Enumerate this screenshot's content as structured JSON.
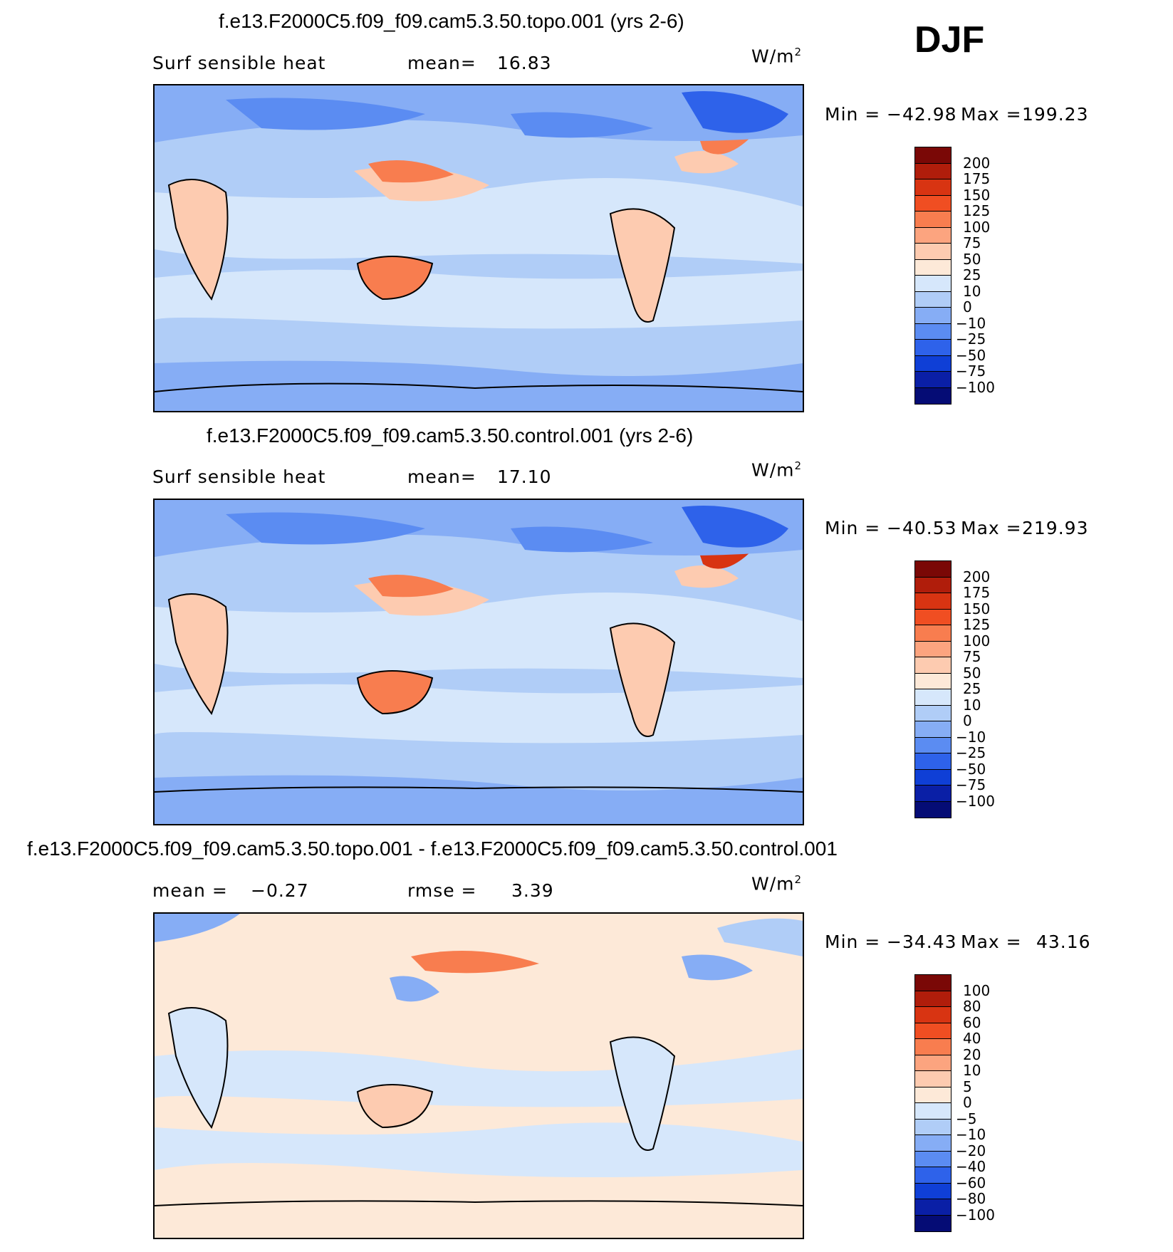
{
  "season": "DJF",
  "units_base": "W/m",
  "units_exp": "2",
  "chart_data": [
    {
      "type": "heatmap",
      "title": "f.e13.F2000C5.f09_f09.cam5.3.50.topo.001 (yrs 2-6)",
      "left_label": "Surf sensible heat",
      "stat_label": "mean=",
      "stat_value": "16.83",
      "min_label": "Min =",
      "min_value": "−42.98",
      "max_label": "Max =",
      "max_value": "199.23",
      "colorbar_levels": [
        "200",
        "175",
        "150",
        "125",
        "100",
        "75",
        "50",
        "25",
        "10",
        "0",
        "−10",
        "−25",
        "−50",
        "−75",
        "−100"
      ],
      "colorbar_colors": [
        "#7a0806",
        "#b01d0b",
        "#d83412",
        "#f04e22",
        "#f87d4f",
        "#fca47f",
        "#fdcbb0",
        "#fde9d8",
        "#d6e7fb",
        "#b0cdf7",
        "#86adf5",
        "#5b8cf2",
        "#2e62ea",
        "#0f3fd6",
        "#0a1fa6",
        "#050c75"
      ]
    },
    {
      "type": "heatmap",
      "title": "f.e13.F2000C5.f09_f09.cam5.3.50.control.001 (yrs 2-6)",
      "left_label": "Surf sensible heat",
      "stat_label": "mean=",
      "stat_value": "17.10",
      "min_label": "Min =",
      "min_value": "−40.53",
      "max_label": "Max =",
      "max_value": "219.93",
      "colorbar_levels": [
        "200",
        "175",
        "150",
        "125",
        "100",
        "75",
        "50",
        "25",
        "10",
        "0",
        "−10",
        "−25",
        "−50",
        "−75",
        "−100"
      ],
      "colorbar_colors": [
        "#7a0806",
        "#b01d0b",
        "#d83412",
        "#f04e22",
        "#f87d4f",
        "#fca47f",
        "#fdcbb0",
        "#fde9d8",
        "#d6e7fb",
        "#b0cdf7",
        "#86adf5",
        "#5b8cf2",
        "#2e62ea",
        "#0f3fd6",
        "#0a1fa6",
        "#050c75"
      ]
    },
    {
      "type": "heatmap",
      "title": "f.e13.F2000C5.f09_f09.cam5.3.50.topo.001 - f.e13.F2000C5.f09_f09.cam5.3.50.control.001",
      "left_label": "mean =",
      "left_value": "−0.27",
      "stat_label": "rmse =",
      "stat_value": "3.39",
      "min_label": "Min =",
      "min_value": "−34.43",
      "max_label": "Max =",
      "max_value": "43.16",
      "colorbar_levels": [
        "100",
        "80",
        "60",
        "40",
        "20",
        "10",
        "5",
        "0",
        "−5",
        "−10",
        "−20",
        "−40",
        "−60",
        "−80",
        "−100"
      ],
      "colorbar_colors": [
        "#7a0806",
        "#b01d0b",
        "#d83412",
        "#f04e22",
        "#f87d4f",
        "#fca47f",
        "#fdcbb0",
        "#fde9d8",
        "#d6e7fb",
        "#b0cdf7",
        "#86adf5",
        "#5b8cf2",
        "#2e62ea",
        "#0f3fd6",
        "#0a1fa6",
        "#050c75"
      ]
    }
  ]
}
